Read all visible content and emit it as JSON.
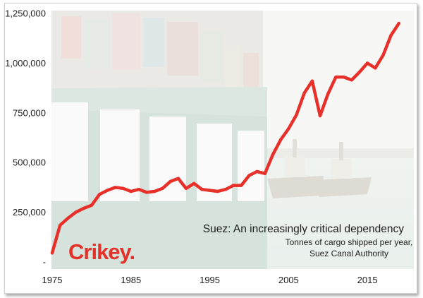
{
  "chart_data": {
    "type": "line",
    "title": "Suez: An increasingly critical dependency",
    "subtitle": [
      "Tonnes of cargo shipped per year,",
      "Suez Canal Authority"
    ],
    "xlabel": "",
    "ylabel": "",
    "xlim": [
      1975,
      2020
    ],
    "ylim": [
      0,
      1250000
    ],
    "x_ticks": [
      1975,
      1985,
      1995,
      2005,
      2015
    ],
    "x_tick_labels": [
      "1975",
      "1985",
      "1995",
      "2005",
      "2015"
    ],
    "y_ticks": [
      0,
      250000,
      500000,
      750000,
      1000000,
      1250000
    ],
    "y_tick_labels": [
      "-",
      "250,000",
      "500,000",
      "750,000",
      "1,000,000",
      "1,250,000"
    ],
    "grid": false,
    "line_color": "#e8302a",
    "series": [
      {
        "x": [
          1975,
          1976,
          1977,
          1978,
          1979,
          1980,
          1981,
          1982,
          1983,
          1984,
          1985,
          1986,
          1987,
          1988,
          1989,
          1990,
          1991,
          1992,
          1993,
          1994,
          1995,
          1996,
          1997,
          1998,
          1999,
          2000,
          2001,
          2002,
          2003,
          2004,
          2005,
          2006,
          2007,
          2008,
          2009,
          2010,
          2011,
          2012,
          2013,
          2014,
          2015,
          2016,
          2017,
          2018,
          2019
        ],
        "y": [
          45000,
          185000,
          220000,
          250000,
          270000,
          285000,
          340000,
          360000,
          375000,
          370000,
          355000,
          365000,
          350000,
          355000,
          370000,
          405000,
          420000,
          370000,
          395000,
          365000,
          360000,
          355000,
          365000,
          385000,
          385000,
          435000,
          455000,
          445000,
          540000,
          615000,
          670000,
          740000,
          850000,
          910000,
          735000,
          845000,
          930000,
          930000,
          915000,
          955000,
          1000000,
          975000,
          1040000,
          1140000,
          1200000
        ]
      }
    ]
  },
  "logo_text": "Crikey."
}
